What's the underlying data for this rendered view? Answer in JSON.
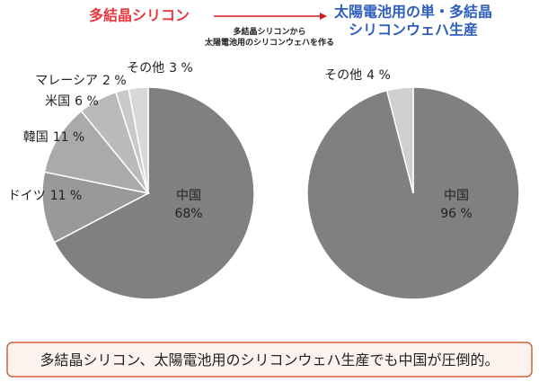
{
  "annotation": [
    "多結晶シリコンから",
    "太陽電池用のシリコンウェハを作る"
  ],
  "caption": "多結晶シリコン、太陽電池用のシリコンウェハ生産でも中国が圧倒的。",
  "chart_data": [
    {
      "type": "pie",
      "title": [
        "多結晶シリコン"
      ],
      "title_color": "#e8383d",
      "categories": [
        "中国",
        "ドイツ",
        "韓国",
        "米国",
        "マレーシア",
        "その他"
      ],
      "values": [
        68,
        11,
        11,
        6,
        2,
        3
      ],
      "value_labels": [
        "68%",
        "11 %",
        "11 %",
        "6 %",
        "2 %",
        "3 %"
      ],
      "colors": [
        "#808080",
        "#999999",
        "#aaaaaa",
        "#bababa",
        "#c9c9c9",
        "#d8d8d8"
      ]
    },
    {
      "type": "pie",
      "title": [
        "太陽電池用の単・多結晶",
        "シリコンウェハ生産"
      ],
      "title_color": "#2e5fbf",
      "categories": [
        "中国",
        "その他"
      ],
      "values": [
        96,
        4
      ],
      "value_labels": [
        "96 %",
        "4 %"
      ],
      "colors": [
        "#808080",
        "#d0d0d0"
      ]
    }
  ]
}
